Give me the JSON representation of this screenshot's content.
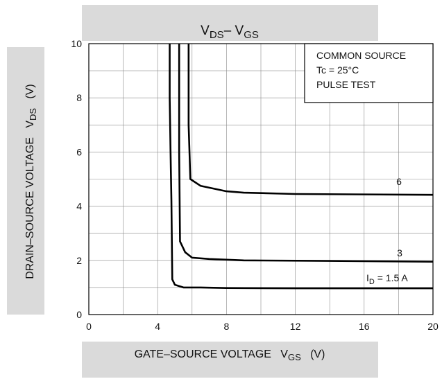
{
  "chart_data": {
    "type": "line",
    "title": "V",
    "title_parts": [
      "DS",
      "– V",
      "GS"
    ],
    "xlabel": "GATE–SOURCE VOLTAGE   V",
    "xlabel_sub": "GS",
    "xlabel_unit": "(V)",
    "ylabel": "DRAIN–SOURCE VOLTAGE   V",
    "ylabel_sub": "DS",
    "ylabel_unit": "(V)",
    "xlim": [
      0,
      20
    ],
    "ylim": [
      0,
      10
    ],
    "x_ticks": [
      "0",
      "4",
      "8",
      "12",
      "16",
      "20"
    ],
    "y_ticks": [
      "0",
      "2",
      "4",
      "6",
      "8",
      "10"
    ],
    "x_tick_values": [
      0,
      4,
      8,
      12,
      16,
      20
    ],
    "y_tick_values": [
      0,
      2,
      4,
      6,
      8,
      10
    ],
    "grid": true,
    "legend_box": [
      "COMMON SOURCE",
      "Tc = 25°C",
      "PULSE TEST"
    ],
    "legend_position": "top-right",
    "series": [
      {
        "name": "I",
        "label_sub": "D",
        "label_rest": " = 1.5 A",
        "x": [
          4.7,
          4.7,
          4.75,
          4.8,
          4.85,
          5.0,
          5.5,
          6.5,
          8,
          12,
          20
        ],
        "y": [
          10,
          8,
          6,
          4.2,
          1.3,
          1.1,
          1.0,
          1.0,
          0.98,
          0.97,
          0.97
        ]
      },
      {
        "name": "3",
        "x": [
          5.25,
          5.25,
          5.3,
          5.6,
          6.0,
          7.0,
          9.0,
          14.0,
          20.0
        ],
        "y": [
          10,
          6,
          2.7,
          2.3,
          2.1,
          2.05,
          2.0,
          1.98,
          1.95
        ]
      },
      {
        "name": "6",
        "x": [
          5.8,
          5.8,
          5.9,
          6.5,
          8.0,
          9.0,
          12.0,
          20.0
        ],
        "y": [
          10,
          7,
          5.0,
          4.75,
          4.55,
          4.5,
          4.45,
          4.42
        ]
      }
    ],
    "colors": {
      "curve": "#000000",
      "grid": "#888888",
      "axis": "#000000"
    }
  }
}
